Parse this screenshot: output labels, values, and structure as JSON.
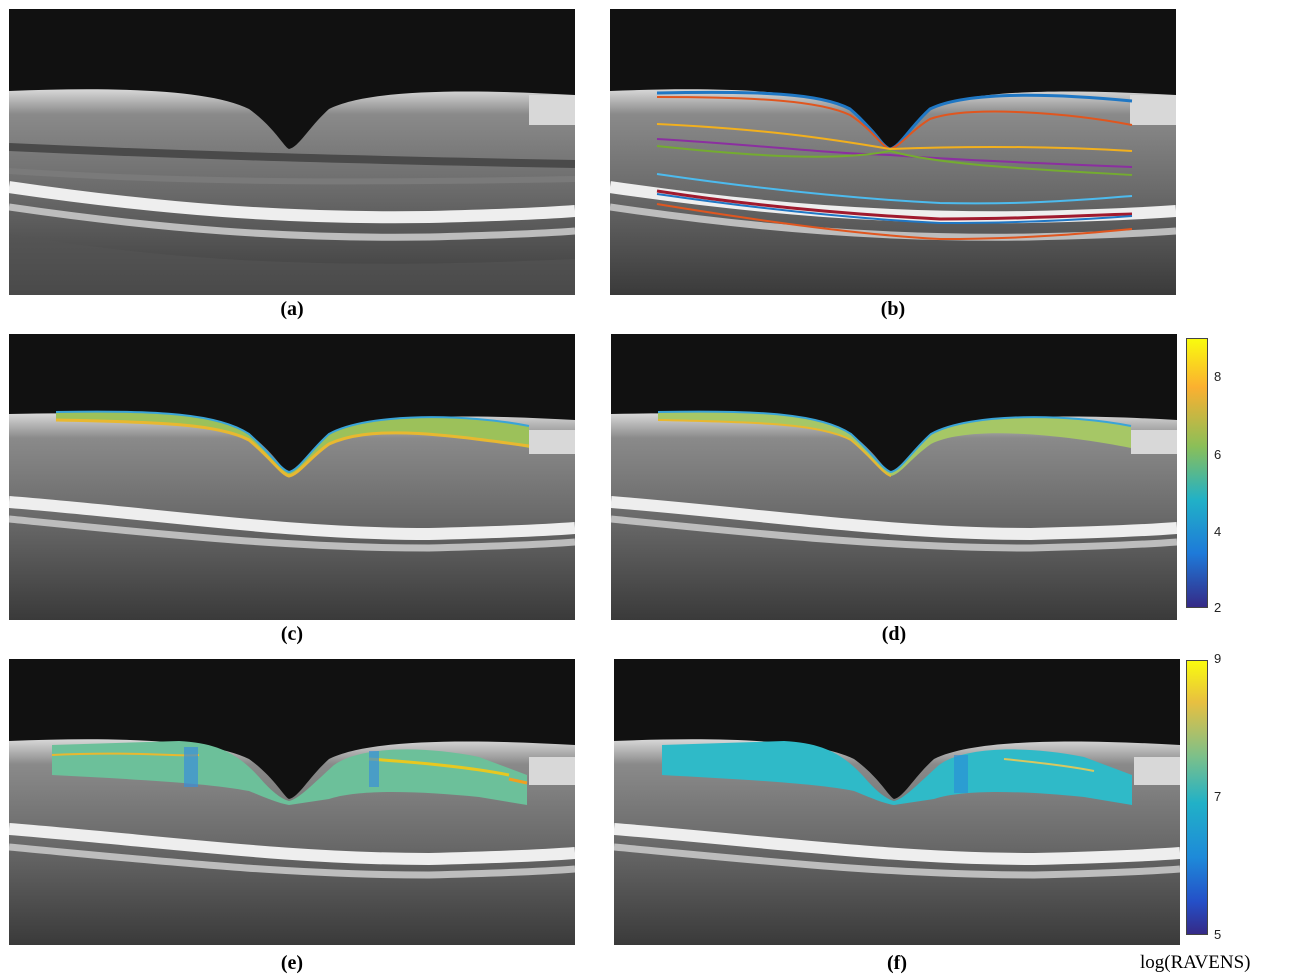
{
  "captions": {
    "a": "(a)",
    "b": "(b)",
    "c": "(c)",
    "d": "(d)",
    "e": "(e)",
    "f": "(f)"
  },
  "colorbar_top": {
    "ticks": [
      "8",
      "6",
      "4",
      "2"
    ]
  },
  "colorbar_bottom": {
    "ticks": [
      "9",
      "7",
      "5"
    ],
    "label": "log(RAVENS)"
  },
  "colors": {
    "retina_gray": "#8e8e8e",
    "rpe_white": "#ececec",
    "background": "#111111",
    "parula_low": "#352a87",
    "parula_mid": "#21b1c7",
    "parula_high": "#f9fb0e",
    "layer_blue": "#1f77c4",
    "layer_orange": "#e0561f",
    "layer_yellow": "#f2b01e",
    "layer_purple": "#8b2fa0",
    "layer_green": "#74ac30",
    "layer_cyan": "#4dbbee",
    "layer_darkred": "#a01a2e"
  }
}
